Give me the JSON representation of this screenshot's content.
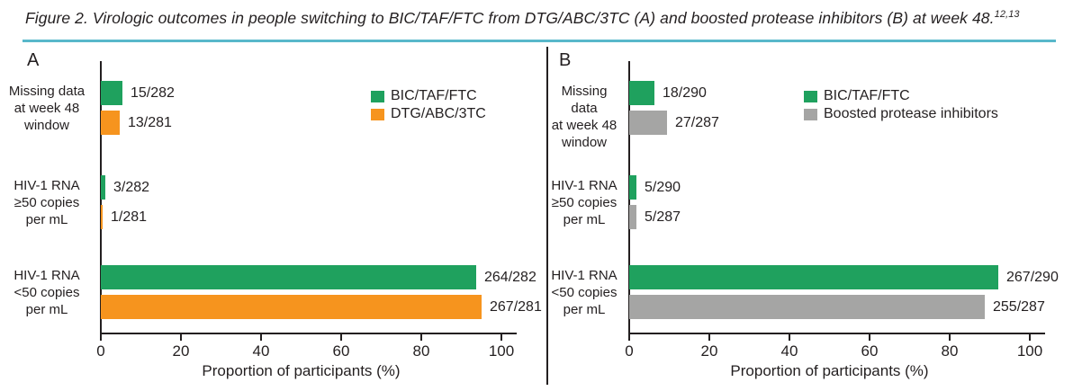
{
  "figure": {
    "title": "Figure 2. Virologic outcomes in people switching to BIC/TAF/FTC from DTG/ABC/3TC (A) and boosted protease inhibitors (B) at week 48.",
    "title_superscript": "12,13"
  },
  "colors": {
    "bic_green": "#1FA15E",
    "dtg_orange": "#F6941E",
    "bpi_gray": "#A5A5A4",
    "rule_teal": "#58B8CA",
    "text": "#231F20"
  },
  "chart_data": [
    {
      "type": "bar",
      "panel_label": "A",
      "orientation": "horizontal",
      "xlabel": "Proportion of participants (%)",
      "xlim": [
        0,
        100
      ],
      "xticks": [
        "0",
        "20",
        "40",
        "60",
        "80",
        "100"
      ],
      "grid": false,
      "legend_position": "top-right",
      "categories": [
        [
          "Missing data",
          "at week 48",
          "window"
        ],
        [
          "HIV-1 RNA",
          "≥50 copies",
          "per mL"
        ],
        [
          "HIV-1 RNA",
          "<50 copies",
          "per mL"
        ]
      ],
      "series": [
        {
          "name": "BIC/TAF/FTC",
          "color": "#1FA15E",
          "values_pct": [
            5.32,
            1.06,
            93.62
          ],
          "value_labels": [
            "15/282",
            "3/282",
            "264/282"
          ]
        },
        {
          "name": "DTG/ABC/3TC",
          "color": "#F6941E",
          "values_pct": [
            4.63,
            0.36,
            95.02
          ],
          "value_labels": [
            "13/281",
            "1/281",
            "267/281"
          ]
        }
      ]
    },
    {
      "type": "bar",
      "panel_label": "B",
      "orientation": "horizontal",
      "xlabel": "Proportion of participants (%)",
      "xlim": [
        0,
        100
      ],
      "xticks": [
        "0",
        "20",
        "40",
        "60",
        "80",
        "100"
      ],
      "grid": false,
      "legend_position": "top-right",
      "categories": [
        [
          "Missing data",
          "at week 48",
          "window"
        ],
        [
          "HIV-1 RNA",
          "≥50 copies",
          "per mL"
        ],
        [
          "HIV-1 RNA",
          "<50 copies",
          "per mL"
        ]
      ],
      "series": [
        {
          "name": "BIC/TAF/FTC",
          "color": "#1FA15E",
          "values_pct": [
            6.21,
            1.72,
            92.07
          ],
          "value_labels": [
            "18/290",
            "5/290",
            "267/290"
          ]
        },
        {
          "name": "Boosted protease inhibitors",
          "color": "#A5A5A4",
          "values_pct": [
            9.41,
            1.74,
            88.85
          ],
          "value_labels": [
            "27/287",
            "5/287",
            "255/287"
          ]
        }
      ]
    }
  ]
}
